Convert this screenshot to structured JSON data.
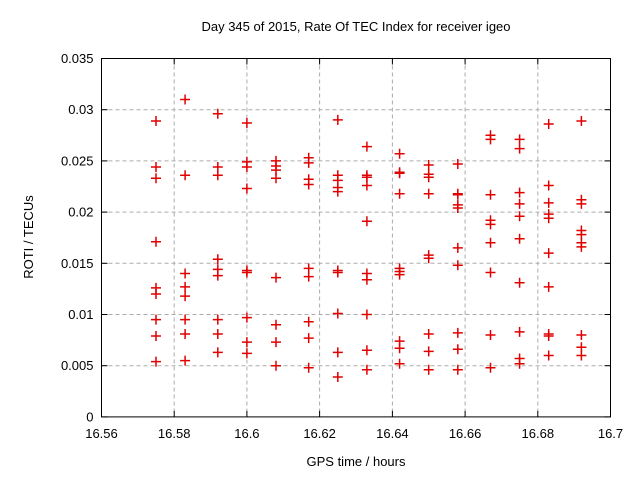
{
  "chart_data": {
    "type": "scatter",
    "title": "Day 345 of 2015, Rate Of TEC Index for receiver igeo",
    "xlabel": "GPS time / hours",
    "ylabel": "ROTI / TECUs",
    "xlim": [
      16.56,
      16.7
    ],
    "ylim": [
      0,
      0.035
    ],
    "xticks": [
      16.56,
      16.58,
      16.6,
      16.62,
      16.64,
      16.66,
      16.68,
      16.7
    ],
    "yticks": [
      0,
      0.005,
      0.01,
      0.015,
      0.02,
      0.025,
      0.03,
      0.035
    ],
    "grid": true,
    "legend_position": "none",
    "marker": {
      "shape": "plus",
      "color": "#e10000",
      "size": 10,
      "stroke_width": 1.5
    },
    "series": [
      {
        "name": "ROTI",
        "points": [
          [
            16.575,
            0.0289
          ],
          [
            16.575,
            0.0244
          ],
          [
            16.575,
            0.0233
          ],
          [
            16.575,
            0.0171
          ],
          [
            16.575,
            0.0126
          ],
          [
            16.575,
            0.012
          ],
          [
            16.575,
            0.0095
          ],
          [
            16.575,
            0.0079
          ],
          [
            16.575,
            0.0054
          ],
          [
            16.583,
            0.031
          ],
          [
            16.583,
            0.0236
          ],
          [
            16.583,
            0.014
          ],
          [
            16.583,
            0.0127
          ],
          [
            16.583,
            0.0118
          ],
          [
            16.583,
            0.0095
          ],
          [
            16.583,
            0.0081
          ],
          [
            16.583,
            0.0055
          ],
          [
            16.592,
            0.0296
          ],
          [
            16.592,
            0.0244
          ],
          [
            16.592,
            0.0236
          ],
          [
            16.592,
            0.0154
          ],
          [
            16.592,
            0.0144
          ],
          [
            16.592,
            0.0138
          ],
          [
            16.592,
            0.0095
          ],
          [
            16.592,
            0.0081
          ],
          [
            16.592,
            0.0063
          ],
          [
            16.6,
            0.0287
          ],
          [
            16.6,
            0.0249
          ],
          [
            16.6,
            0.0244
          ],
          [
            16.6,
            0.0223
          ],
          [
            16.6,
            0.0143
          ],
          [
            16.6,
            0.0141
          ],
          [
            16.6,
            0.0097
          ],
          [
            16.6,
            0.0073
          ],
          [
            16.6,
            0.0062
          ],
          [
            16.608,
            0.025
          ],
          [
            16.608,
            0.0245
          ],
          [
            16.608,
            0.0241
          ],
          [
            16.608,
            0.0233
          ],
          [
            16.608,
            0.0136
          ],
          [
            16.608,
            0.009
          ],
          [
            16.608,
            0.0073
          ],
          [
            16.608,
            0.005
          ],
          [
            16.617,
            0.0253
          ],
          [
            16.617,
            0.0248
          ],
          [
            16.617,
            0.0232
          ],
          [
            16.617,
            0.0227
          ],
          [
            16.617,
            0.0145
          ],
          [
            16.617,
            0.0137
          ],
          [
            16.617,
            0.0093
          ],
          [
            16.617,
            0.0077
          ],
          [
            16.617,
            0.0048
          ],
          [
            16.625,
            0.029
          ],
          [
            16.625,
            0.0236
          ],
          [
            16.625,
            0.0231
          ],
          [
            16.625,
            0.0224
          ],
          [
            16.625,
            0.022
          ],
          [
            16.625,
            0.0143
          ],
          [
            16.625,
            0.0141
          ],
          [
            16.625,
            0.0101
          ],
          [
            16.625,
            0.0063
          ],
          [
            16.625,
            0.0039
          ],
          [
            16.633,
            0.0264
          ],
          [
            16.633,
            0.0236
          ],
          [
            16.633,
            0.0234
          ],
          [
            16.633,
            0.0226
          ],
          [
            16.633,
            0.0191
          ],
          [
            16.633,
            0.014
          ],
          [
            16.633,
            0.0134
          ],
          [
            16.633,
            0.01
          ],
          [
            16.633,
            0.0065
          ],
          [
            16.633,
            0.0046
          ],
          [
            16.642,
            0.0257
          ],
          [
            16.642,
            0.0239
          ],
          [
            16.642,
            0.0238
          ],
          [
            16.642,
            0.0218
          ],
          [
            16.642,
            0.0145
          ],
          [
            16.642,
            0.0142
          ],
          [
            16.642,
            0.0139
          ],
          [
            16.642,
            0.0074
          ],
          [
            16.642,
            0.0067
          ],
          [
            16.642,
            0.0052
          ],
          [
            16.65,
            0.0246
          ],
          [
            16.65,
            0.0237
          ],
          [
            16.65,
            0.0234
          ],
          [
            16.65,
            0.0218
          ],
          [
            16.65,
            0.0158
          ],
          [
            16.65,
            0.0155
          ],
          [
            16.65,
            0.0081
          ],
          [
            16.65,
            0.0064
          ],
          [
            16.65,
            0.0046
          ],
          [
            16.658,
            0.0247
          ],
          [
            16.658,
            0.0218
          ],
          [
            16.658,
            0.0217
          ],
          [
            16.658,
            0.0207
          ],
          [
            16.658,
            0.0204
          ],
          [
            16.658,
            0.0165
          ],
          [
            16.658,
            0.0148
          ],
          [
            16.658,
            0.0082
          ],
          [
            16.658,
            0.0066
          ],
          [
            16.658,
            0.0046
          ],
          [
            16.667,
            0.0275
          ],
          [
            16.667,
            0.0271
          ],
          [
            16.667,
            0.0217
          ],
          [
            16.667,
            0.0192
          ],
          [
            16.667,
            0.0188
          ],
          [
            16.667,
            0.017
          ],
          [
            16.667,
            0.0141
          ],
          [
            16.667,
            0.008
          ],
          [
            16.667,
            0.0048
          ],
          [
            16.675,
            0.0271
          ],
          [
            16.675,
            0.0262
          ],
          [
            16.675,
            0.0219
          ],
          [
            16.675,
            0.0208
          ],
          [
            16.675,
            0.0196
          ],
          [
            16.675,
            0.0174
          ],
          [
            16.675,
            0.0131
          ],
          [
            16.675,
            0.0083
          ],
          [
            16.675,
            0.0057
          ],
          [
            16.675,
            0.0052
          ],
          [
            16.683,
            0.0286
          ],
          [
            16.683,
            0.0226
          ],
          [
            16.683,
            0.0209
          ],
          [
            16.683,
            0.0198
          ],
          [
            16.683,
            0.0194
          ],
          [
            16.683,
            0.016
          ],
          [
            16.683,
            0.0127
          ],
          [
            16.683,
            0.0081
          ],
          [
            16.683,
            0.0079
          ],
          [
            16.683,
            0.006
          ],
          [
            16.692,
            0.0289
          ],
          [
            16.692,
            0.0212
          ],
          [
            16.692,
            0.0208
          ],
          [
            16.692,
            0.0182
          ],
          [
            16.692,
            0.0178
          ],
          [
            16.692,
            0.017
          ],
          [
            16.692,
            0.0166
          ],
          [
            16.692,
            0.008
          ],
          [
            16.692,
            0.0068
          ],
          [
            16.692,
            0.006
          ]
        ]
      }
    ]
  }
}
